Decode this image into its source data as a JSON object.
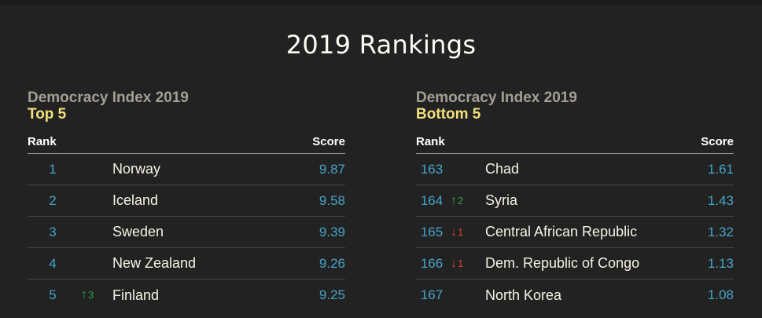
{
  "title": "2019 Rankings",
  "colors": {
    "background": "#222222",
    "accent_blue": "#47a4c9",
    "accent_yellow": "#f2e07c",
    "up_green": "#2f9e44",
    "down_red": "#d8432f",
    "text_cream": "#f7f2e6",
    "kicker_gray": "#a39f94"
  },
  "panels": [
    {
      "kicker": "Democracy Index 2019",
      "heading": "Top 5",
      "col_rank": "Rank",
      "col_score": "Score",
      "rows": [
        {
          "rank": "1",
          "change_dir": "",
          "change_icon": "",
          "change_amt": "",
          "country": "Norway",
          "score": "9.87"
        },
        {
          "rank": "2",
          "change_dir": "",
          "change_icon": "",
          "change_amt": "",
          "country": "Iceland",
          "score": "9.58"
        },
        {
          "rank": "3",
          "change_dir": "",
          "change_icon": "",
          "change_amt": "",
          "country": "Sweden",
          "score": "9.39"
        },
        {
          "rank": "4",
          "change_dir": "",
          "change_icon": "",
          "change_amt": "",
          "country": "New Zealand",
          "score": "9.26"
        },
        {
          "rank": "5",
          "change_dir": "up",
          "change_icon": "↑",
          "change_amt": "3",
          "country": "Finland",
          "score": "9.25"
        }
      ]
    },
    {
      "kicker": "Democracy Index 2019",
      "heading": "Bottom 5",
      "col_rank": "Rank",
      "col_score": "Score",
      "rows": [
        {
          "rank": "163",
          "change_dir": "",
          "change_icon": "",
          "change_amt": "",
          "country": "Chad",
          "score": "1.61"
        },
        {
          "rank": "164",
          "change_dir": "up",
          "change_icon": "↑",
          "change_amt": "2",
          "country": "Syria",
          "score": "1.43"
        },
        {
          "rank": "165",
          "change_dir": "down",
          "change_icon": "↓",
          "change_amt": "1",
          "country": "Central African Republic",
          "score": "1.32"
        },
        {
          "rank": "166",
          "change_dir": "down",
          "change_icon": "↓",
          "change_amt": "1",
          "country": "Dem. Republic of Congo",
          "score": "1.13"
        },
        {
          "rank": "167",
          "change_dir": "",
          "change_icon": "",
          "change_amt": "",
          "country": "North Korea",
          "score": "1.08"
        }
      ]
    }
  ]
}
